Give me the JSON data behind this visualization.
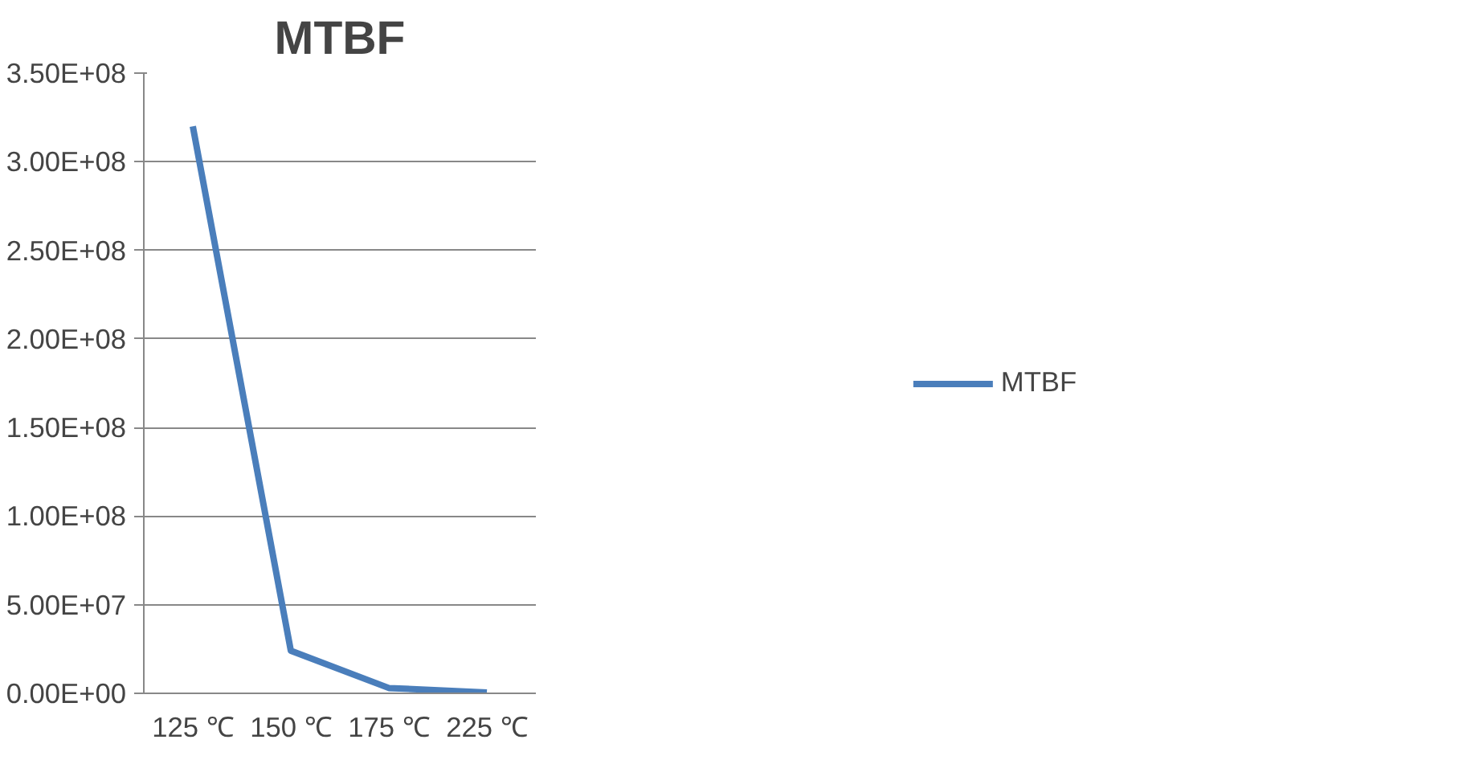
{
  "chart_data": {
    "type": "line",
    "title": "MTBF",
    "categories": [
      "125 ℃",
      "150 ℃",
      "175 ℃",
      "225 ℃"
    ],
    "series": [
      {
        "name": "MTBF",
        "color": "#4a7ebb",
        "values": [
          320000000,
          24000000,
          3000000,
          500000
        ]
      }
    ],
    "ylim": [
      0,
      350000000
    ],
    "yticks": [
      {
        "value": 0,
        "label": "0.00E+00"
      },
      {
        "value": 50000000,
        "label": "5.00E+07"
      },
      {
        "value": 100000000,
        "label": "1.00E+08"
      },
      {
        "value": 150000000,
        "label": "1.50E+08"
      },
      {
        "value": 200000000,
        "label": "2.00E+08"
      },
      {
        "value": 250000000,
        "label": "2.50E+08"
      },
      {
        "value": 300000000,
        "label": "3.00E+08"
      },
      {
        "value": 350000000,
        "label": "3.50E+08"
      }
    ],
    "grid": "y",
    "legend": "right",
    "marker": "none",
    "line_style": "solid"
  }
}
